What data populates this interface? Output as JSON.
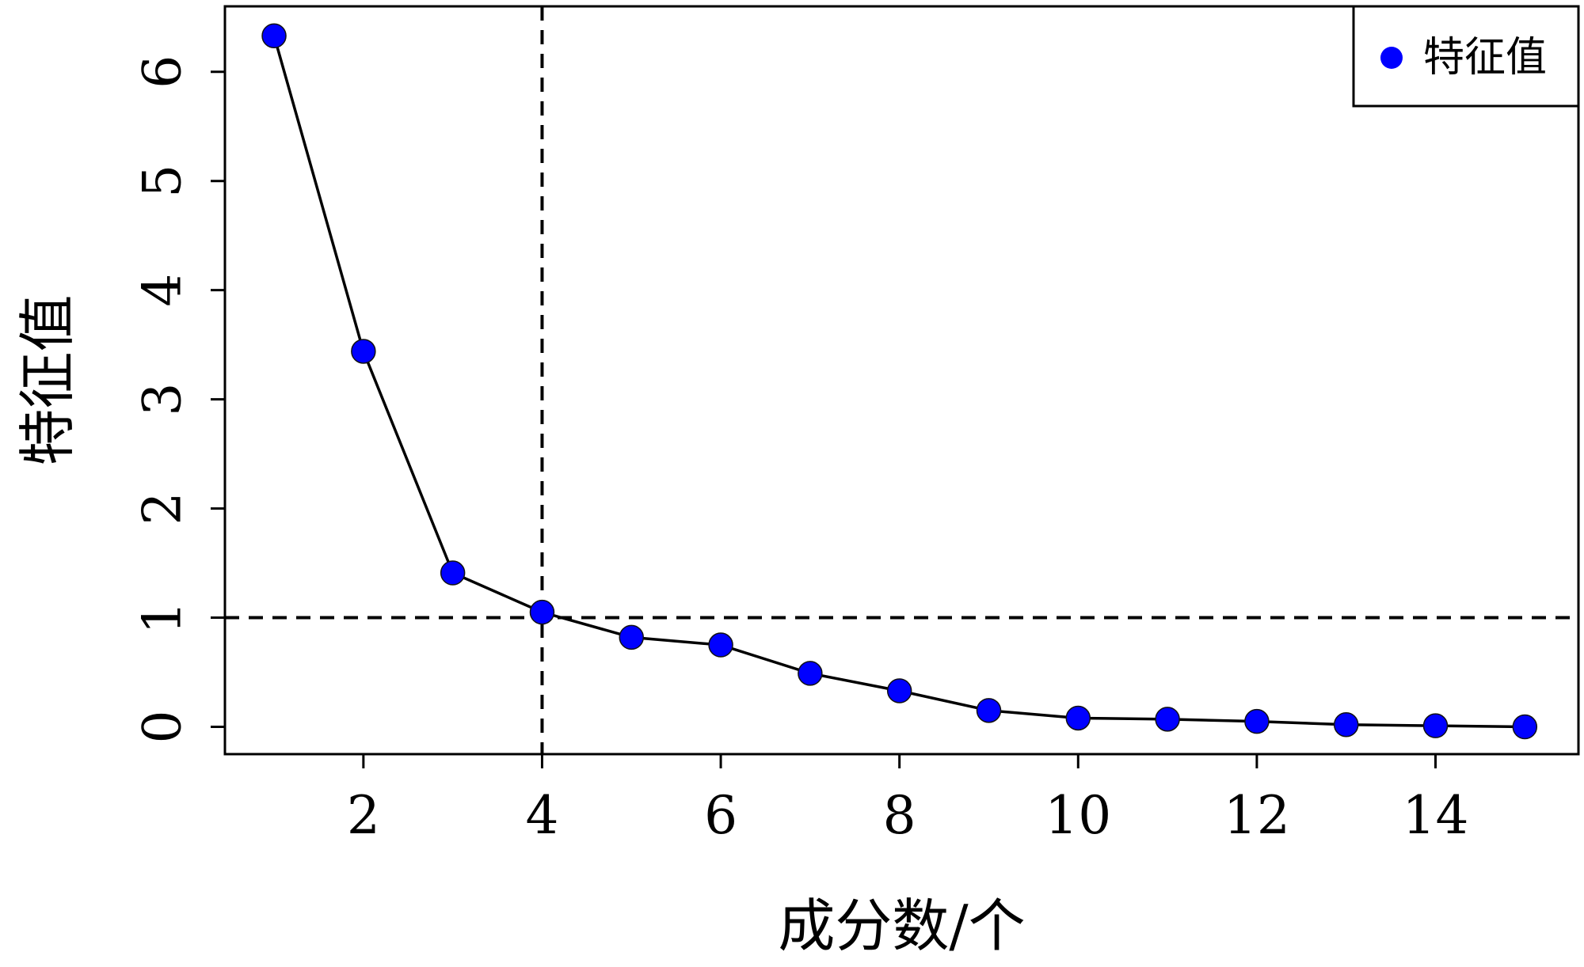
{
  "chart_data": {
    "type": "line",
    "xlabel": "成分数/个",
    "ylabel": "特征值",
    "x": [
      1,
      2,
      3,
      4,
      5,
      6,
      7,
      8,
      9,
      10,
      11,
      12,
      13,
      14,
      15
    ],
    "series": [
      {
        "name": "特征值",
        "values": [
          6.33,
          3.44,
          1.41,
          1.05,
          0.82,
          0.75,
          0.49,
          0.33,
          0.15,
          0.08,
          0.07,
          0.05,
          0.02,
          0.01,
          0.0
        ]
      }
    ],
    "xticks": [
      "2",
      "4",
      "6",
      "8",
      "10",
      "12",
      "14"
    ],
    "yticks": [
      "0",
      "1",
      "2",
      "3",
      "4",
      "5",
      "6"
    ],
    "xlim": [
      0.45,
      15.6
    ],
    "ylim": [
      -0.25,
      6.6
    ],
    "reference_lines": {
      "h": 1,
      "v": 4
    },
    "legend_position": "top-right",
    "grid": false,
    "colors": {
      "marker_fill": "#0000ff",
      "marker_stroke": "#111111",
      "line": "#000000",
      "reference": "#000000"
    }
  }
}
